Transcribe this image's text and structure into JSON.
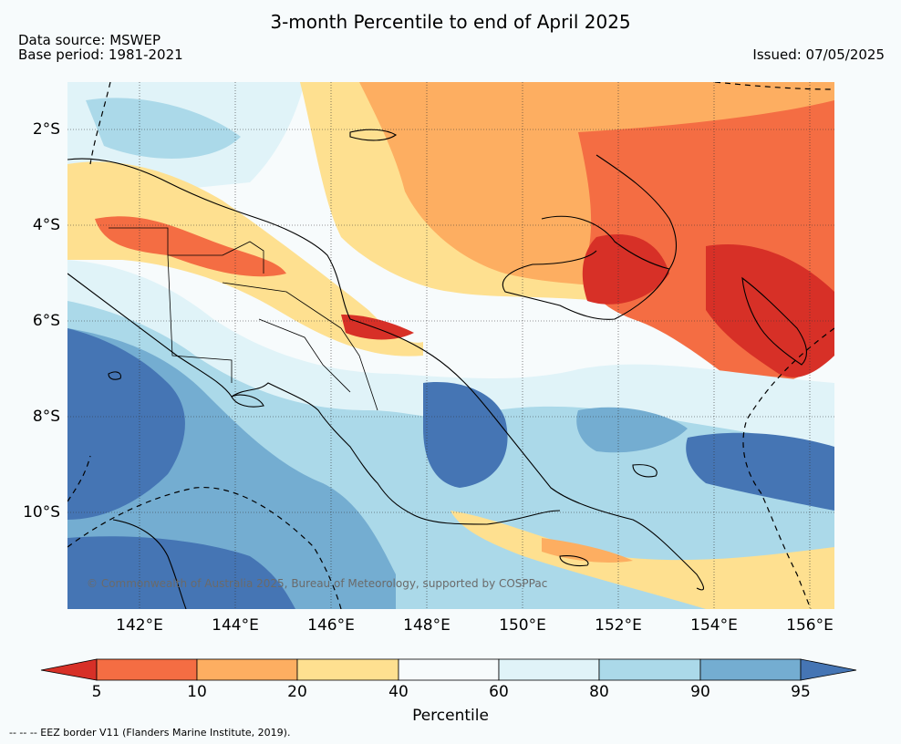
{
  "title": "3-month Percentile to end of April 2025",
  "meta": {
    "source": "Data source: MSWEP",
    "base": "Base period: 1981-2021",
    "issued": "Issued: 07/05/2025"
  },
  "axes": {
    "lat": [
      "2°S",
      "4°S",
      "6°S",
      "8°S",
      "10°S"
    ],
    "lon": [
      "142°E",
      "144°E",
      "146°E",
      "148°E",
      "150°E",
      "152°E",
      "154°E",
      "156°E"
    ]
  },
  "copyright": "© Commonwealth of Australia 2025, Bureau of Meteorology, supported by COSPPac",
  "legend": {
    "title": "Percentile",
    "ticks": [
      "5",
      "10",
      "20",
      "40",
      "60",
      "80",
      "90",
      "95"
    ],
    "colors": [
      "#d73027",
      "#f46d43",
      "#fdae61",
      "#fee090",
      "#f7fbfc",
      "#e0f3f8",
      "#abd9e9",
      "#74add1",
      "#4575b4"
    ]
  },
  "footnote": "-- -- -- EEZ border V11 (Flanders Marine Institute, 2019).",
  "colors": {
    "background": "#f7fbfc",
    "coastline": "#000000"
  }
}
